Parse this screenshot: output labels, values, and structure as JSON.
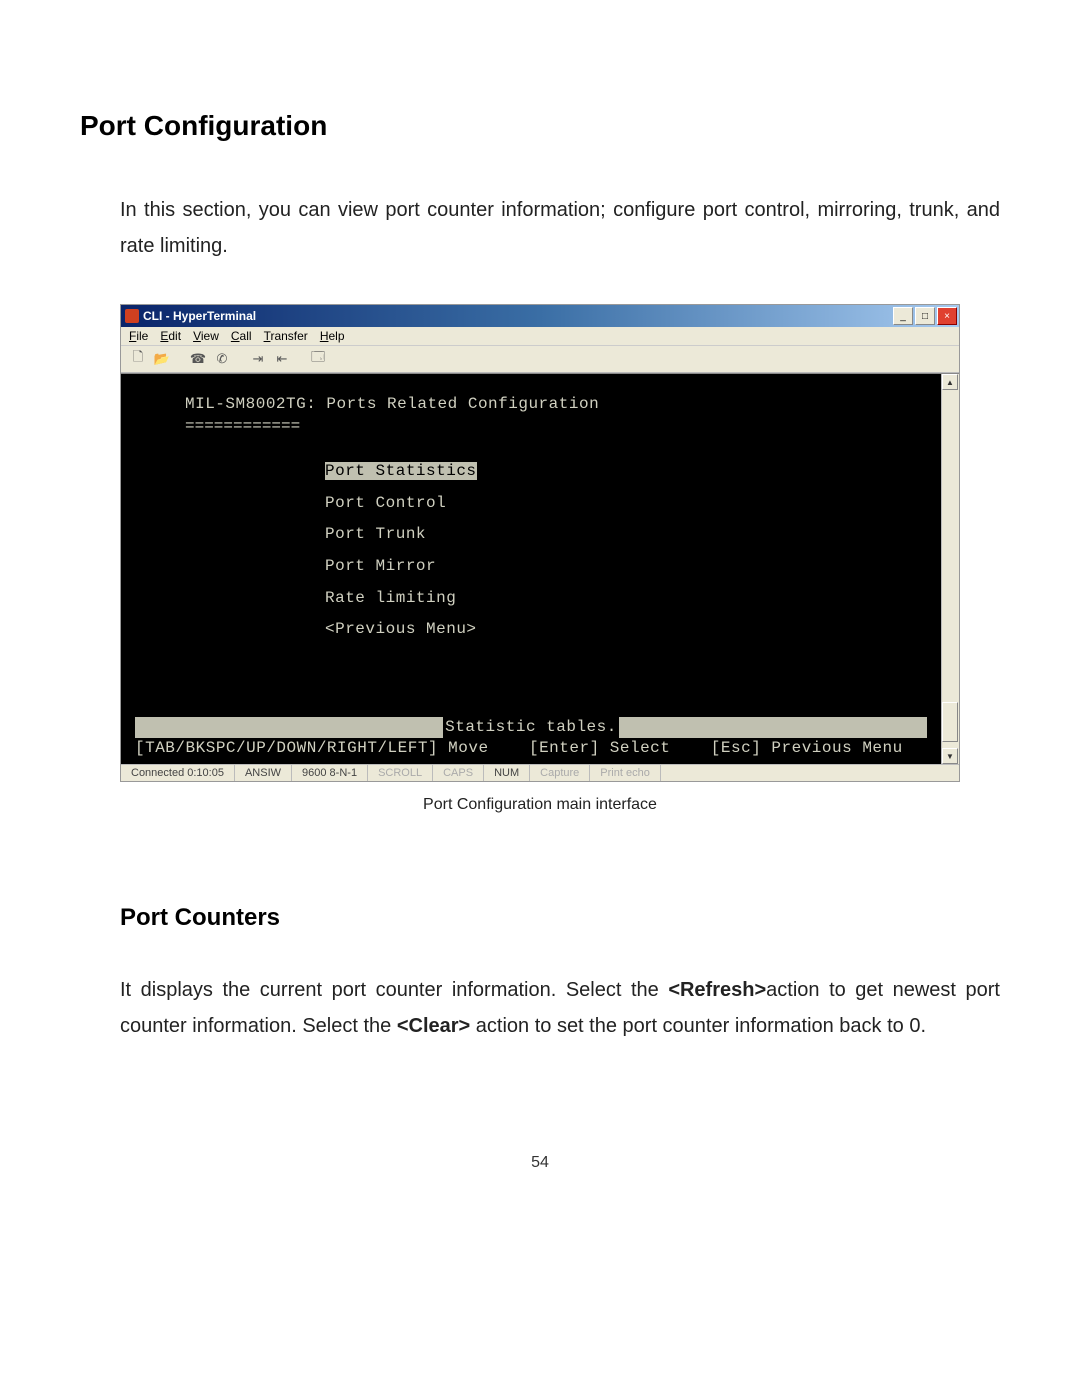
{
  "doc": {
    "heading1": "Port Configuration",
    "para1": "In this section, you can view port counter information; configure port control, mirroring, trunk, and rate limiting.",
    "caption": "Port Configuration main interface",
    "heading2": "Port Counters",
    "para2_a": "It displays the current port counter information. Select the ",
    "para2_b": "<Refresh>",
    "para2_c": "action to get newest port counter information. Select the ",
    "para2_d": "<Clear>",
    "para2_e": " action to set the port counter information back to 0.",
    "page_number": "54"
  },
  "ht": {
    "title": "CLI - HyperTerminal",
    "menus": {
      "file": "File",
      "edit": "Edit",
      "view": "View",
      "call": "Call",
      "transfer": "Transfer",
      "help": "Help"
    },
    "winbtn": {
      "min": "_",
      "max": "□",
      "close": "×"
    },
    "toolbar_icons": [
      "new-doc-icon",
      "open-icon",
      "connect-icon",
      "disconnect-icon",
      "send-icon",
      "receive-icon",
      "properties-icon"
    ],
    "status": {
      "connected": "Connected 0:10:05",
      "emulation": "ANSIW",
      "params": "9600 8-N-1",
      "scroll": "SCROLL",
      "caps": "CAPS",
      "num": "NUM",
      "capture": "Capture",
      "printecho": "Print echo"
    }
  },
  "term": {
    "header": "MIL-SM8002TG: Ports Related Configuration",
    "rule": "============",
    "menu": [
      {
        "label": "Port Statistics",
        "selected": true
      },
      {
        "label": "Port Control",
        "selected": false
      },
      {
        "label": "Port Trunk",
        "selected": false
      },
      {
        "label": "Port Mirror",
        "selected": false
      },
      {
        "label": "Rate limiting",
        "selected": false
      },
      {
        "label": "<Previous Menu>",
        "selected": false
      }
    ],
    "footer_title": "Statistic tables.",
    "hints": "[TAB/BKSPC/UP/DOWN/RIGHT/LEFT] Move    [Enter] Select    [Esc] Previous Menu"
  },
  "colors": {
    "page_bg": "#ffffff",
    "text": "#222222",
    "win_frame": "#ece9d8",
    "titlebar_start": "#0a246a",
    "titlebar_end": "#a6caf0",
    "terminal_bg": "#000000",
    "terminal_fg": "#d0d0c0",
    "terminal_highlight_bg": "#c0c0b0",
    "terminal_highlight_fg": "#000000",
    "close_btn": "#e04030"
  }
}
